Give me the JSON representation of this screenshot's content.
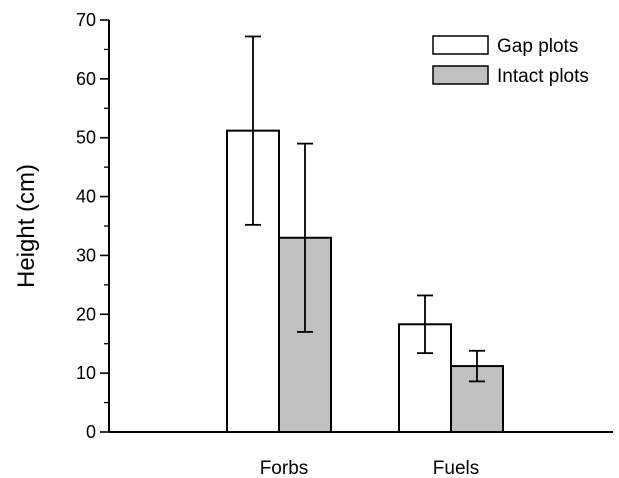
{
  "chart_data": {
    "type": "bar",
    "categories": [
      "Forbs",
      "Fuels"
    ],
    "series": [
      {
        "name": "Gap plots",
        "values": [
          51.2,
          18.3
        ],
        "error": [
          16.0,
          4.9
        ],
        "color": "#ffffff"
      },
      {
        "name": "Intact plots",
        "values": [
          33.0,
          11.2
        ],
        "error": [
          16.0,
          2.6
        ],
        "color": "#c0c0c0"
      }
    ],
    "title": "",
    "xlabel": "",
    "ylabel": "Height (cm)",
    "ylim": [
      0,
      70
    ],
    "yticks": [
      0,
      10,
      20,
      30,
      40,
      50,
      60,
      70
    ],
    "grid": false,
    "legend_position": "top-right"
  }
}
